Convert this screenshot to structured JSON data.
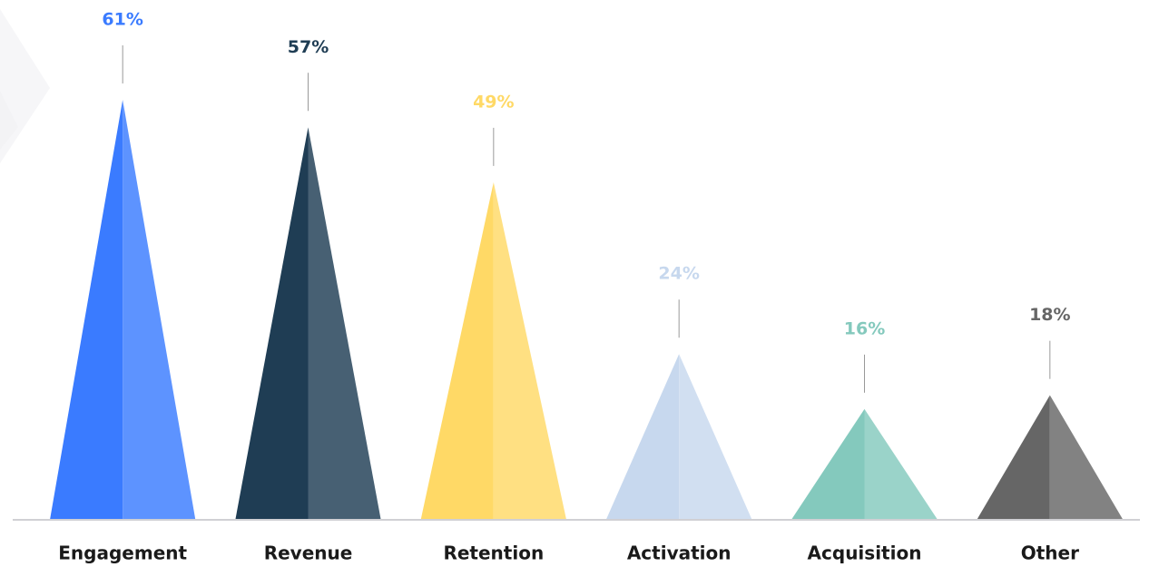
{
  "chart_data": {
    "type": "triangle-bar",
    "categories": [
      "Engagement",
      "Revenue",
      "Retention",
      "Activation",
      "Acquisition",
      "Other"
    ],
    "values": [
      61,
      57,
      49,
      24,
      16,
      18
    ],
    "value_labels": [
      "61%",
      "57%",
      "49%",
      "24%",
      "16%",
      "18%"
    ],
    "colors": [
      "#3a7bff",
      "#1f3d54",
      "#ffd966",
      "#c7d8ee",
      "#84c9bd",
      "#666666"
    ]
  }
}
